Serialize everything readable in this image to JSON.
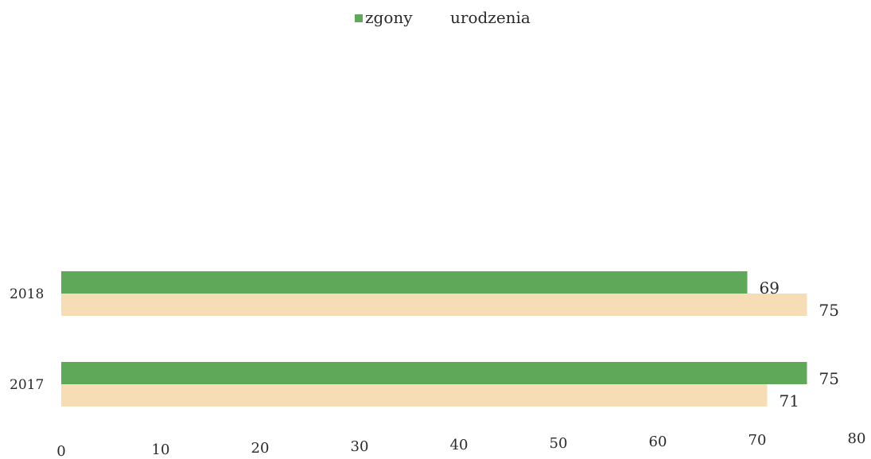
{
  "chart_data": {
    "type": "bar",
    "orientation": "horizontal",
    "categories": [
      "2018",
      "2017"
    ],
    "series": [
      {
        "name": "zgony",
        "values": [
          69,
          75
        ],
        "color": "#5fa85a"
      },
      {
        "name": "urodzenia",
        "values": [
          75,
          71
        ],
        "color": "#f6ddb6"
      }
    ],
    "data_labels": {
      "zgony": [
        "69",
        "75"
      ],
      "urodzenia": [
        "75",
        "71"
      ]
    },
    "xlim": [
      0,
      80
    ],
    "xticks": [
      0,
      10,
      20,
      30,
      40,
      50,
      60,
      70,
      80
    ],
    "xtick_labels": [
      "0",
      "10",
      "20",
      "30",
      "40",
      "50",
      "60",
      "70",
      "80"
    ],
    "title": "",
    "xlabel": "",
    "ylabel": "",
    "legend_position": "top-center",
    "grid": false
  }
}
